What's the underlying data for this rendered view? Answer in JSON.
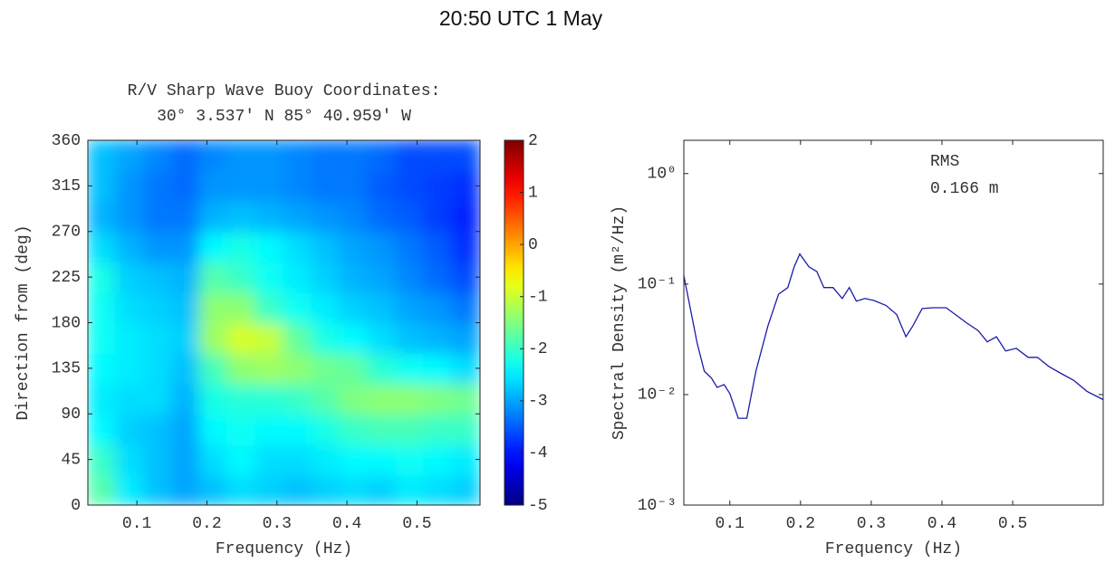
{
  "title": "20:50 UTC 1 May",
  "chart_data": [
    {
      "type": "heatmap",
      "title": [
        "R/V Sharp Wave Buoy Coordinates:",
        "30° 3.537' N  85° 40.959' W"
      ],
      "x_label": "Frequency (Hz)",
      "y_label": "Direction from (deg)",
      "x": [
        0.05,
        0.09,
        0.13,
        0.17,
        0.21,
        0.25,
        0.29,
        0.33,
        0.37,
        0.41,
        0.45,
        0.49,
        0.53,
        0.57
      ],
      "y": [
        15,
        45,
        75,
        105,
        135,
        165,
        195,
        225,
        255,
        285,
        315,
        345
      ],
      "z": [
        [
          -1.8,
          -2.5,
          -2.8,
          -3,
          -2.8,
          -2.6,
          -2.7,
          -2.8,
          -2.7,
          -2.6,
          -2.7,
          -2.5,
          -2.6,
          -2.7
        ],
        [
          -2.0,
          -2.6,
          -2.8,
          -3,
          -2.6,
          -2.4,
          -2.6,
          -2.6,
          -2.5,
          -2.4,
          -2.4,
          -2.3,
          -2.4,
          -2.5
        ],
        [
          -2.4,
          -2.7,
          -2.8,
          -3,
          -2.4,
          -2.3,
          -2.4,
          -2.4,
          -2.2,
          -2.0,
          -1.9,
          -1.9,
          -2.0,
          -2.0
        ],
        [
          -2.5,
          -2.6,
          -2.6,
          -2.9,
          -2.2,
          -2.1,
          -2.1,
          -2.0,
          -1.8,
          -1.5,
          -1.4,
          -1.4,
          -1.5,
          -1.6
        ],
        [
          -2.4,
          -2.5,
          -2.6,
          -2.8,
          -1.9,
          -1.4,
          -1.3,
          -1.4,
          -1.6,
          -1.7,
          -2.1,
          -2.3,
          -2.4,
          -2.6
        ],
        [
          -2.3,
          -2.5,
          -2.6,
          -2.7,
          -1.3,
          -0.9,
          -1.0,
          -1.7,
          -2.2,
          -2.4,
          -2.6,
          -2.8,
          -2.9,
          -3.0
        ],
        [
          -2.3,
          -2.6,
          -2.7,
          -2.8,
          -1.4,
          -1.4,
          -2.0,
          -2.3,
          -2.5,
          -2.7,
          -2.8,
          -3.0,
          -3.1,
          -3.3
        ],
        [
          -2.2,
          -2.7,
          -2.8,
          -2.9,
          -1.8,
          -2.0,
          -2.3,
          -2.5,
          -2.7,
          -2.9,
          -3.0,
          -3.2,
          -3.4,
          -3.6
        ],
        [
          -2.6,
          -2.9,
          -3.1,
          -3.1,
          -2.4,
          -2.2,
          -2.4,
          -2.6,
          -2.8,
          -3.0,
          -3.1,
          -3.3,
          -3.5,
          -3.8
        ],
        [
          -2.9,
          -3.1,
          -3.3,
          -3.3,
          -2.9,
          -2.8,
          -2.9,
          -3.0,
          -3.1,
          -3.2,
          -3.4,
          -3.5,
          -3.7,
          -3.9
        ],
        [
          -2.8,
          -3.1,
          -3.3,
          -3.4,
          -3.1,
          -3.1,
          -3.1,
          -3.2,
          -3.3,
          -3.3,
          -3.5,
          -3.6,
          -3.7,
          -3.8
        ],
        [
          -2.8,
          -3.0,
          -3.2,
          -3.4,
          -3.2,
          -3.1,
          -3.1,
          -3.2,
          -3.3,
          -3.3,
          -3.4,
          -3.6,
          -3.6,
          -3.6
        ]
      ],
      "xlim": [
        0.03,
        0.59
      ],
      "xticks": [
        0.1,
        0.2,
        0.3,
        0.4,
        0.5
      ],
      "ylim": [
        0,
        360
      ],
      "yticks": [
        0,
        45,
        90,
        135,
        180,
        225,
        270,
        315,
        360
      ],
      "colormap": "jet",
      "clim": [
        -5,
        2
      ],
      "cticks": [
        -5,
        -4,
        -3,
        -2,
        -1,
        0,
        1,
        2
      ]
    },
    {
      "type": "line",
      "x_label": "Frequency (Hz)",
      "y_label": "Spectral Density (m²/Hz)",
      "annotations": [
        "RMS",
        "0.166 m"
      ],
      "color": "#1c1ca8",
      "y_scale": "log",
      "x": [
        0.035,
        0.044,
        0.054,
        0.064,
        0.074,
        0.082,
        0.092,
        0.1,
        0.112,
        0.124,
        0.137,
        0.154,
        0.169,
        0.182,
        0.191,
        0.199,
        0.212,
        0.223,
        0.233,
        0.246,
        0.259,
        0.269,
        0.279,
        0.291,
        0.304,
        0.321,
        0.336,
        0.349,
        0.359,
        0.372,
        0.387,
        0.406,
        0.419,
        0.436,
        0.451,
        0.464,
        0.477,
        0.49,
        0.505,
        0.522,
        0.535,
        0.551,
        0.567,
        0.586,
        0.605,
        0.628
      ],
      "values": [
        0.119,
        0.061,
        0.029,
        0.0163,
        0.0141,
        0.0116,
        0.0123,
        0.0102,
        0.0061,
        0.0061,
        0.0163,
        0.042,
        0.081,
        0.093,
        0.143,
        0.187,
        0.143,
        0.13,
        0.093,
        0.093,
        0.074,
        0.093,
        0.07,
        0.074,
        0.071,
        0.064,
        0.053,
        0.0334,
        0.042,
        0.06,
        0.061,
        0.061,
        0.053,
        0.044,
        0.038,
        0.03,
        0.0334,
        0.0248,
        0.0262,
        0.0217,
        0.0217,
        0.018,
        0.0157,
        0.0135,
        0.0107,
        0.009
      ],
      "xlim": [
        0.035,
        0.628
      ],
      "xticks": [
        0.1,
        0.2,
        0.3,
        0.4,
        0.5
      ],
      "ylim": [
        0.001,
        2
      ],
      "yticks": [
        {
          "value": 0.001,
          "label": "10⁻³"
        },
        {
          "value": 0.01,
          "label": "10⁻²"
        },
        {
          "value": 0.1,
          "label": "10⁻¹"
        },
        {
          "value": 1,
          "label": "10⁰"
        }
      ]
    }
  ]
}
